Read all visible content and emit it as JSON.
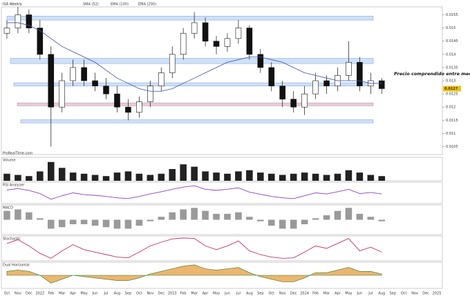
{
  "chart_data": {
    "type": "candlestick",
    "title": "ISA Weekly",
    "legend": [
      "SMA (52)",
      "EMA (100)",
      "EMA (200)"
    ],
    "watermark": "ProRealTime.com",
    "annotation": "Precio comprendido entre medias",
    "last_price": 0.0127,
    "categories": [
      "Oct",
      "Nov",
      "Dec",
      "2022",
      "Feb",
      "Mar",
      "Apr",
      "May",
      "Jun",
      "Jul",
      "Aug",
      "Sep",
      "Oct",
      "Nov",
      "Dec",
      "2023",
      "Feb",
      "Mar",
      "Apr",
      "May",
      "Jun",
      "Jul",
      "Aug",
      "Sep",
      "Oct",
      "Nov",
      "Dec",
      "2024",
      "Feb",
      "Mar",
      "Apr",
      "May",
      "Jun",
      "Jul",
      "Aug"
    ],
    "future_categories": [
      "Sep",
      "Oct",
      "Nov",
      "Dec",
      "2025"
    ],
    "open": [
      0.0148,
      0.015,
      0.0155,
      0.015,
      0.014,
      0.012,
      0.013,
      0.0135,
      0.013,
      0.0128,
      0.0125,
      0.012,
      0.0118,
      0.0122,
      0.0128,
      0.0133,
      0.014,
      0.0148,
      0.0152,
      0.0145,
      0.0143,
      0.0146,
      0.015,
      0.014,
      0.0135,
      0.0128,
      0.0123,
      0.012,
      0.0125,
      0.013,
      0.0128,
      0.0132,
      0.0137,
      0.0128,
      0.013
    ],
    "high": [
      0.0153,
      0.0158,
      0.0157,
      0.0153,
      0.0143,
      0.0133,
      0.0138,
      0.0138,
      0.0133,
      0.0131,
      0.0128,
      0.0123,
      0.0124,
      0.013,
      0.0135,
      0.0143,
      0.015,
      0.0156,
      0.0154,
      0.0147,
      0.0148,
      0.0153,
      0.0151,
      0.0142,
      0.0137,
      0.013,
      0.0126,
      0.0128,
      0.0133,
      0.0132,
      0.0135,
      0.0145,
      0.0139,
      0.0133,
      0.0131
    ],
    "low": [
      0.0146,
      0.0148,
      0.0148,
      0.0138,
      0.0105,
      0.0118,
      0.0128,
      0.0128,
      0.0126,
      0.0123,
      0.0118,
      0.0115,
      0.0116,
      0.012,
      0.0126,
      0.0131,
      0.0138,
      0.0146,
      0.0143,
      0.014,
      0.0141,
      0.0144,
      0.0138,
      0.0133,
      0.0126,
      0.012,
      0.0118,
      0.0117,
      0.0123,
      0.0125,
      0.0126,
      0.013,
      0.0126,
      0.0125,
      0.0125
    ],
    "close": [
      0.015,
      0.0155,
      0.015,
      0.014,
      0.012,
      0.013,
      0.0135,
      0.013,
      0.0128,
      0.0125,
      0.012,
      0.0118,
      0.0122,
      0.0128,
      0.0133,
      0.014,
      0.0148,
      0.0152,
      0.0145,
      0.0143,
      0.0146,
      0.015,
      0.014,
      0.0135,
      0.0128,
      0.0123,
      0.012,
      0.0125,
      0.013,
      0.0128,
      0.0132,
      0.0137,
      0.0128,
      0.013,
      0.0127
    ],
    "sma": [
      0.0152,
      0.0152,
      0.0151,
      0.0149,
      0.0146,
      0.0143,
      0.0141,
      0.0139,
      0.0137,
      0.0134,
      0.0131,
      0.0129,
      0.0127,
      0.0126,
      0.0126,
      0.0127,
      0.0129,
      0.0131,
      0.0133,
      0.0135,
      0.0137,
      0.0138,
      0.0139,
      0.0139,
      0.0138,
      0.0137,
      0.0135,
      0.0133,
      0.0132,
      0.0131,
      0.013,
      0.013,
      0.013,
      0.0129,
      0.0129
    ],
    "sma_color": "#3a4fb0",
    "up_color": "#ffffff",
    "down_color": "#111111",
    "ylim": [
      0.0102,
      0.0158
    ],
    "yticks": [
      0.0155,
      0.015,
      0.0145,
      0.014,
      0.0135,
      0.013,
      0.0125,
      0.012,
      0.0115,
      0.011,
      0.0105
    ],
    "zones": [
      {
        "low": 0.0153,
        "high": 0.01545,
        "color": "#cfe0f8"
      },
      {
        "low": 0.01365,
        "high": 0.01385,
        "color": "#cfe0f8"
      },
      {
        "low": 0.0128,
        "high": 0.01292,
        "color": "#cfe0f8"
      },
      {
        "low": 0.01205,
        "high": 0.01216,
        "color": "#f7c9c9"
      },
      {
        "low": 0.0114,
        "high": 0.01152,
        "color": "#cfe0f8"
      }
    ],
    "indicators": [
      {
        "name": "Volume",
        "type": "bar",
        "color": "#222222",
        "ylim": [
          0,
          100
        ],
        "values": [
          30,
          25,
          20,
          40,
          80,
          55,
          35,
          30,
          25,
          20,
          35,
          40,
          30,
          25,
          30,
          50,
          70,
          60,
          40,
          35,
          30,
          40,
          45,
          35,
          30,
          25,
          30,
          35,
          30,
          25,
          30,
          45,
          35,
          25,
          20
        ]
      },
      {
        "name": "RSI Analyzer",
        "type": "line",
        "color": "#8a3fd1",
        "ylim": [
          20,
          80
        ],
        "values": [
          58,
          62,
          57,
          48,
          32,
          42,
          50,
          45,
          43,
          40,
          36,
          34,
          40,
          47,
          53,
          60,
          66,
          70,
          60,
          57,
          60,
          64,
          52,
          46,
          40,
          36,
          34,
          42,
          50,
          47,
          53,
          60,
          48,
          51,
          47
        ]
      },
      {
        "name": "MACD",
        "type": "bar",
        "color": "#9a9a9a",
        "ylim": [
          -1,
          1
        ],
        "values": [
          0.6,
          0.7,
          0.5,
          0.1,
          -0.6,
          -0.5,
          -0.3,
          -0.3,
          -0.4,
          -0.5,
          -0.6,
          -0.6,
          -0.4,
          -0.1,
          0.2,
          0.5,
          0.7,
          0.8,
          0.6,
          0.4,
          0.4,
          0.5,
          0.2,
          -0.1,
          -0.4,
          -0.6,
          -0.6,
          -0.3,
          0.1,
          0.3,
          0.6,
          0.8,
          0.4,
          0.2,
          -0.1
        ]
      },
      {
        "name": "Stochastic",
        "type": "line",
        "color": "#c8306a",
        "ylim": [
          0,
          100
        ],
        "values": [
          70,
          85,
          60,
          30,
          10,
          40,
          65,
          45,
          35,
          25,
          15,
          12,
          35,
          60,
          75,
          88,
          92,
          90,
          60,
          45,
          60,
          80,
          40,
          25,
          15,
          10,
          12,
          35,
          60,
          50,
          70,
          90,
          40,
          55,
          35
        ]
      },
      {
        "name": "Dual Horizontal",
        "type": "area",
        "color": "#e8a24a",
        "ylim": [
          -1,
          1
        ],
        "values": [
          0.3,
          0.4,
          0.3,
          0.0,
          -0.6,
          -0.3,
          0.0,
          -0.1,
          -0.2,
          -0.3,
          -0.4,
          -0.4,
          -0.2,
          0.1,
          0.3,
          0.5,
          0.7,
          0.8,
          0.5,
          0.4,
          0.5,
          0.6,
          0.2,
          -0.1,
          -0.3,
          -0.5,
          -0.5,
          -0.2,
          0.2,
          0.2,
          0.4,
          0.6,
          0.3,
          0.3,
          0.1
        ]
      }
    ]
  }
}
